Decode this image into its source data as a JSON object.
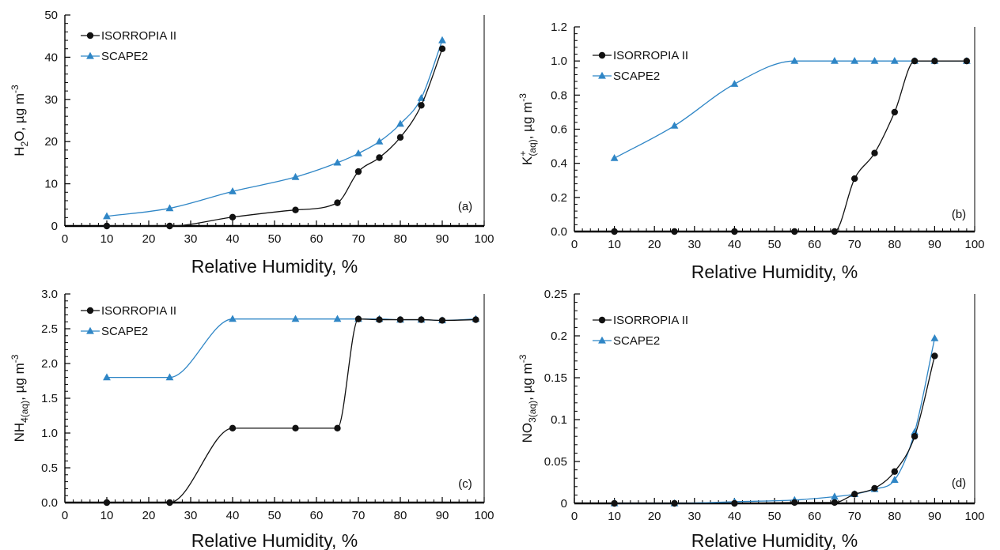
{
  "colors": {
    "isorropia": "#111111",
    "scape2": "#2f86c6",
    "axis": "#000000"
  },
  "chart_data": [
    {
      "panel": "a",
      "type": "line",
      "panel_tag": "(a)",
      "xlabel": "Relative Humidity, %",
      "ylabel": {
        "base": "H",
        "sub": "2",
        "after": "O, µg m",
        "sup": "-3"
      },
      "xlim": [
        0,
        100
      ],
      "ylim": [
        0,
        50
      ],
      "xticks": [
        "0",
        "10",
        "20",
        "30",
        "40",
        "50",
        "60",
        "70",
        "80",
        "90",
        "100"
      ],
      "yticks": [
        "0",
        "10",
        "20",
        "30",
        "40",
        "50"
      ],
      "legend_position": "top-left",
      "series": [
        {
          "name": "ISORROPIA II",
          "marker": "circle",
          "x": [
            10,
            25,
            40,
            55,
            65,
            70,
            75,
            80,
            85,
            90
          ],
          "y": [
            0,
            0,
            2.1,
            3.8,
            5.5,
            12.9,
            16.2,
            21.0,
            28.6,
            42.0
          ]
        },
        {
          "name": "SCAPE2",
          "marker": "triangle",
          "x": [
            10,
            25,
            40,
            55,
            65,
            70,
            75,
            80,
            85,
            90
          ],
          "y": [
            2.3,
            4.2,
            8.2,
            11.6,
            15.0,
            17.2,
            20.0,
            24.2,
            30.3,
            44.0
          ]
        }
      ]
    },
    {
      "panel": "b",
      "type": "line",
      "panel_tag": "(b)",
      "xlabel": "Relative Humidity, %",
      "ylabel": {
        "base": "K",
        "sup": "+",
        "sub": "(aq)",
        "after": ", µg m",
        "sup2": "-3"
      },
      "xlim": [
        0,
        100
      ],
      "ylim": [
        0,
        1.2
      ],
      "xticks": [
        "0",
        "10",
        "20",
        "30",
        "40",
        "50",
        "60",
        "70",
        "80",
        "90",
        "100"
      ],
      "yticks": [
        "0.0",
        "0.2",
        "0.4",
        "0.6",
        "0.8",
        "1.0",
        "1.2"
      ],
      "legend_position": "top-left",
      "series": [
        {
          "name": "ISORROPIA II",
          "marker": "circle",
          "x": [
            10,
            25,
            40,
            55,
            65,
            70,
            75,
            80,
            85,
            90,
            98
          ],
          "y": [
            0,
            0,
            0,
            0,
            0,
            0.31,
            0.46,
            0.7,
            1.0,
            1.0,
            1.0
          ]
        },
        {
          "name": "SCAPE2",
          "marker": "triangle",
          "x": [
            10,
            25,
            40,
            55,
            65,
            70,
            75,
            80,
            85,
            90,
            98
          ],
          "y": [
            0.43,
            0.62,
            0.865,
            1.0,
            1.0,
            1.0,
            1.0,
            1.0,
            1.0,
            1.0,
            1.0
          ]
        }
      ]
    },
    {
      "panel": "c",
      "type": "line",
      "panel_tag": "(c)",
      "xlabel": "Relative Humidity, %",
      "ylabel": {
        "base": "NH",
        "sub": "4(aq)",
        "after": ", µg m",
        "sup": "-3"
      },
      "xlim": [
        0,
        100
      ],
      "ylim": [
        0,
        3.0
      ],
      "xticks": [
        "0",
        "10",
        "20",
        "30",
        "40",
        "50",
        "60",
        "70",
        "80",
        "90",
        "100"
      ],
      "yticks": [
        "0.0",
        "0.5",
        "1.0",
        "1.5",
        "2.0",
        "2.5",
        "3.0"
      ],
      "legend_position": "top-left",
      "series": [
        {
          "name": "ISORROPIA II",
          "marker": "circle",
          "x": [
            10,
            25,
            40,
            55,
            65,
            70,
            75,
            80,
            85,
            90,
            98
          ],
          "y": [
            0,
            0,
            1.07,
            1.07,
            1.07,
            2.64,
            2.63,
            2.63,
            2.63,
            2.62,
            2.63
          ]
        },
        {
          "name": "SCAPE2",
          "marker": "triangle",
          "x": [
            10,
            25,
            40,
            55,
            65,
            70,
            75,
            80,
            85,
            90,
            98
          ],
          "y": [
            1.8,
            1.8,
            2.64,
            2.64,
            2.64,
            2.64,
            2.64,
            2.63,
            2.63,
            2.62,
            2.64
          ]
        }
      ]
    },
    {
      "panel": "d",
      "type": "line",
      "panel_tag": "(d)",
      "xlabel": "Relative Humidity, %",
      "ylabel": {
        "base": "NO",
        "sub": "3(aq)",
        "after": ", µg m",
        "sup": "-3"
      },
      "xlim": [
        0,
        100
      ],
      "ylim": [
        0,
        0.25
      ],
      "xticks": [
        "0",
        "10",
        "20",
        "30",
        "40",
        "50",
        "60",
        "70",
        "80",
        "90",
        "100"
      ],
      "yticks": [
        "0",
        "0.05",
        "0.1",
        "0.15",
        "0.2",
        "0.25"
      ],
      "legend_position": "top-left",
      "series": [
        {
          "name": "ISORROPIA II",
          "marker": "circle",
          "x": [
            10,
            25,
            40,
            55,
            65,
            70,
            75,
            80,
            85,
            90
          ],
          "y": [
            0,
            0,
            0,
            0.001,
            0.001,
            0.011,
            0.018,
            0.038,
            0.08,
            0.176
          ]
        },
        {
          "name": "SCAPE2",
          "marker": "triangle",
          "x": [
            10,
            25,
            40,
            55,
            65,
            70,
            75,
            80,
            85,
            90
          ],
          "y": [
            0,
            0,
            0.002,
            0.004,
            0.008,
            0.011,
            0.017,
            0.028,
            0.085,
            0.197
          ]
        }
      ]
    }
  ]
}
